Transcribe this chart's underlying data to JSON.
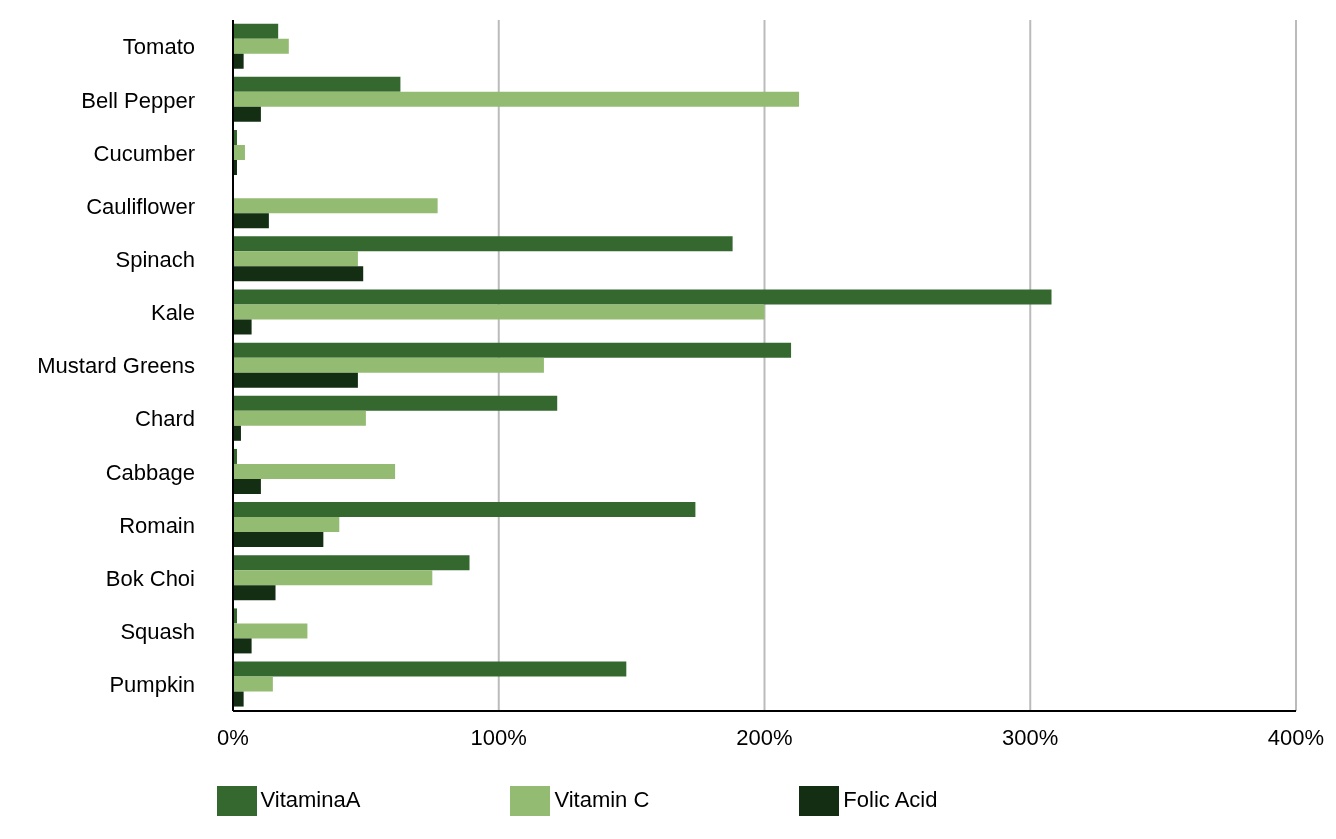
{
  "chart_data": {
    "type": "bar",
    "orientation": "horizontal",
    "categories": [
      "Tomato",
      "Bell Pepper",
      "Cucumber",
      "Cauliflower",
      "Spinach",
      "Kale",
      "Mustard Greens",
      "Chard",
      "Cabbage",
      "Romain",
      "Bok Choi",
      "Squash",
      "Pumpkin"
    ],
    "series": [
      {
        "name": "VitaminaA",
        "color": "#35682f",
        "values": [
          17,
          63,
          1.5,
          0,
          188,
          308,
          210,
          122,
          1.5,
          174,
          89,
          1.5,
          148
        ]
      },
      {
        "name": "Vitamin C",
        "color": "#93bb72",
        "values": [
          21,
          213,
          4.5,
          77,
          47,
          200,
          117,
          50,
          61,
          40,
          75,
          28,
          15
        ]
      },
      {
        "name": "Folic Acid",
        "color": "#142e14",
        "values": [
          4,
          10.5,
          1.5,
          13.5,
          49,
          7,
          47,
          3,
          10.5,
          34,
          16,
          7,
          4
        ]
      }
    ],
    "xlim": [
      0,
      400
    ],
    "xticks": [
      {
        "value": 0,
        "label": "0%"
      },
      {
        "value": 100,
        "label": "100%"
      },
      {
        "value": 200,
        "label": "200%"
      },
      {
        "value": 300,
        "label": "300%"
      },
      {
        "value": 400,
        "label": "400%"
      }
    ],
    "grid": "x",
    "legend": "bottom"
  }
}
